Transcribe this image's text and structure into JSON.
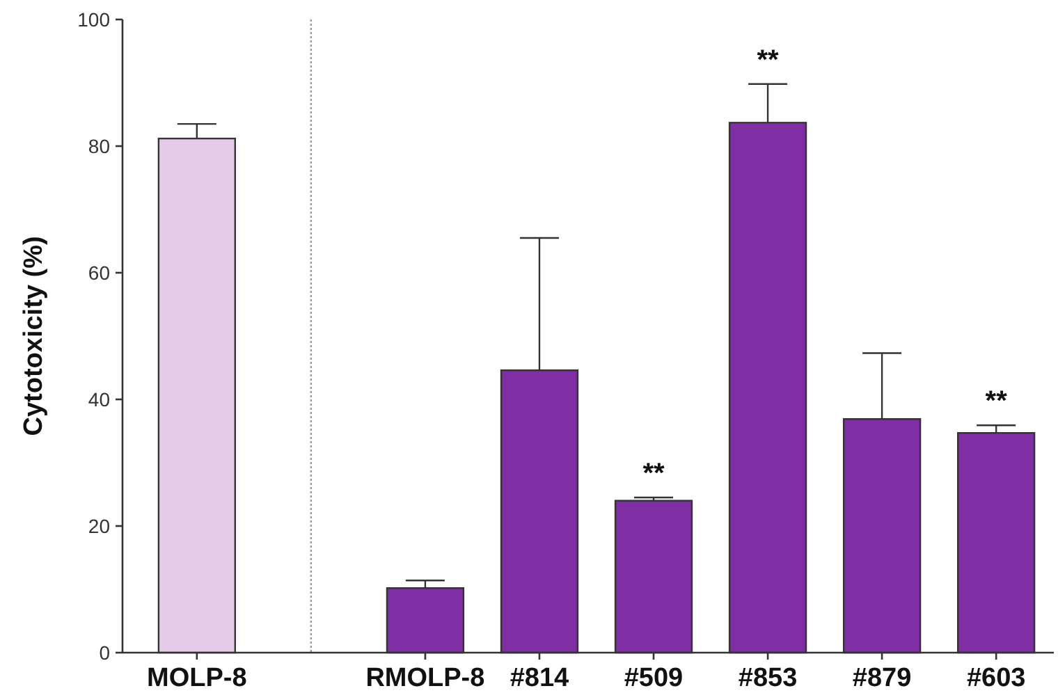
{
  "chart_data": {
    "type": "bar",
    "ylabel": "Cytotoxicity (%)",
    "categories": [
      "MOLP-8",
      null,
      "RMOLP-8",
      "#814",
      "#509",
      "#853",
      "#879",
      "#603"
    ],
    "values": [
      81.2,
      null,
      10.2,
      44.6,
      24.0,
      83.7,
      36.9,
      34.7
    ],
    "colors": [
      "#e6cbe9",
      null,
      "#7f2fa3",
      "#7f2fa3",
      "#7f2fa3",
      "#7f2fa3",
      "#7f2fa3",
      "#7f2fa3"
    ],
    "errors": [
      2.3,
      null,
      1.2,
      20.9,
      0.5,
      6.1,
      10.4,
      1.2
    ],
    "value_labels": [
      null,
      null,
      null,
      null,
      "**",
      "**",
      null,
      "**"
    ],
    "ylim": [
      0,
      100
    ],
    "yticks": [
      0,
      20,
      40,
      60,
      80,
      100
    ],
    "ref_lines": [
      {
        "axis": "x",
        "value": null,
        "line_style": "dotted",
        "color": "#999999"
      }
    ]
  }
}
